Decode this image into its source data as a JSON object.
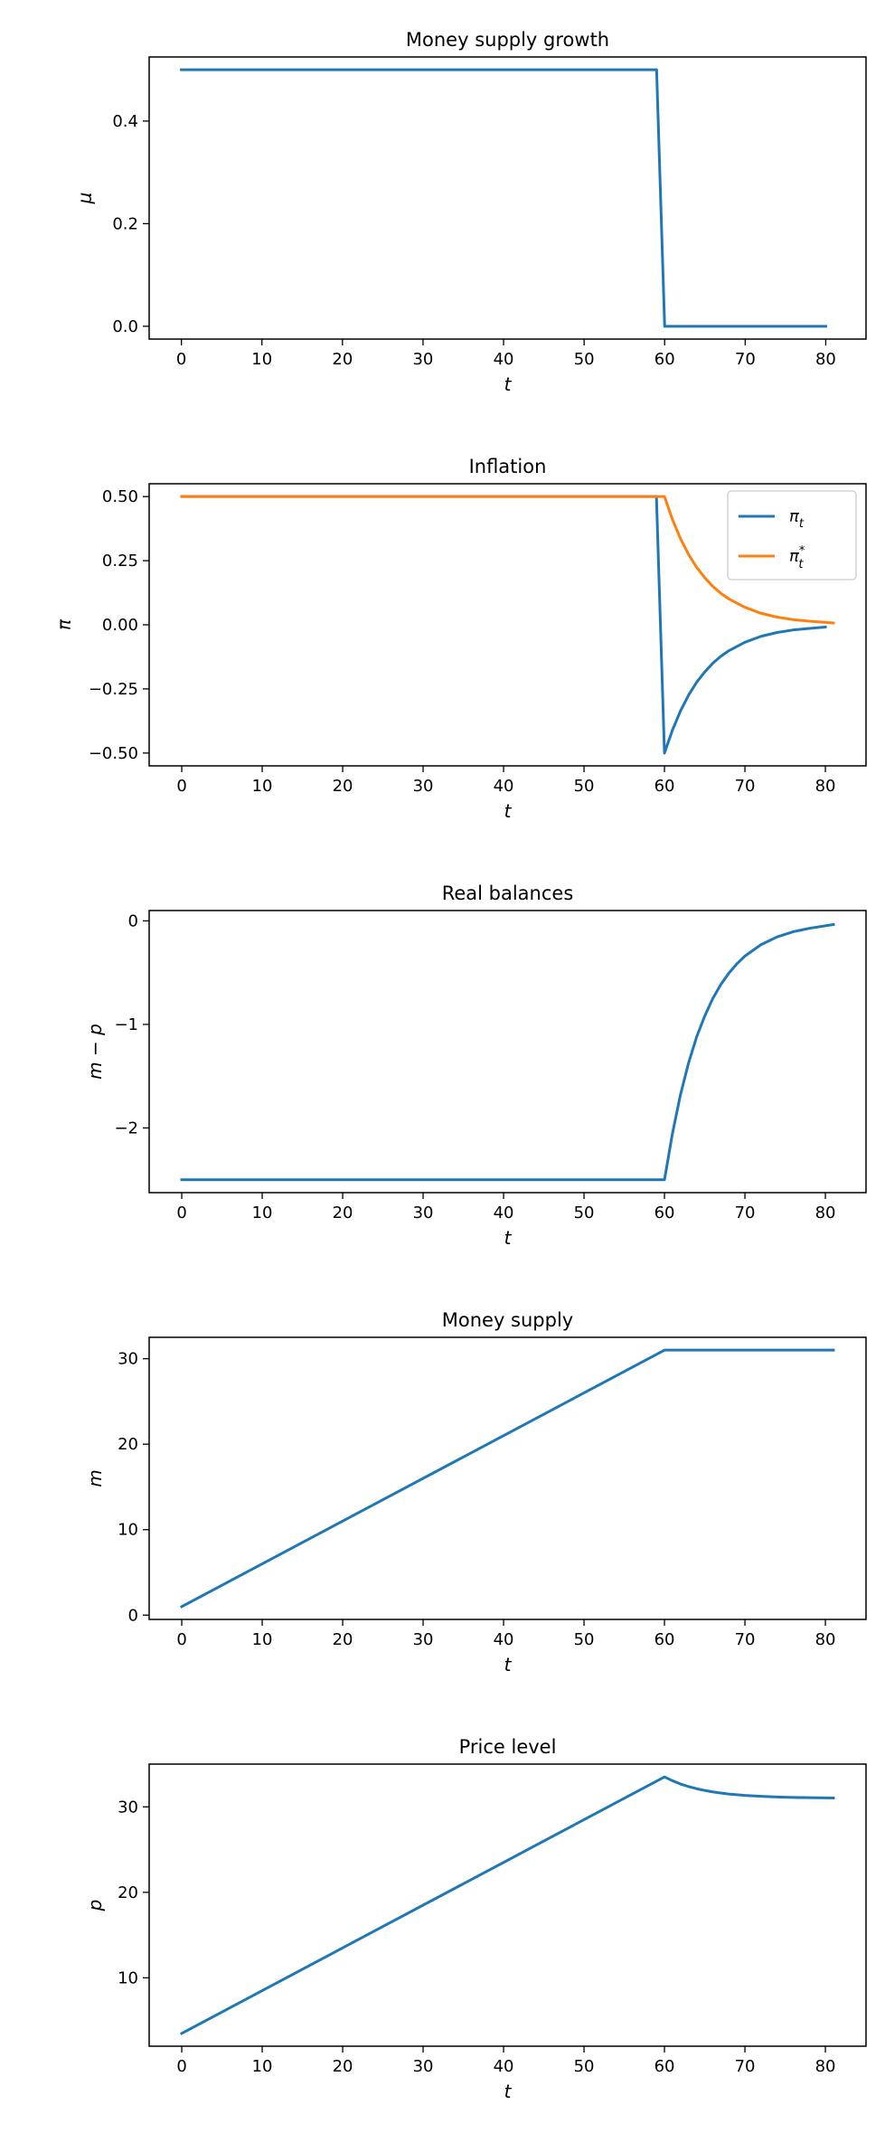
{
  "colors": {
    "blue": "#1f77b4",
    "orange": "#ff7f0e"
  },
  "chart_data": [
    {
      "type": "line",
      "title": "Money supply growth",
      "xlabel": "t",
      "ylabel": "μ",
      "xlim": [
        -4,
        85
      ],
      "ylim": [
        -0.025,
        0.525
      ],
      "xticks": [
        0,
        10,
        20,
        30,
        40,
        50,
        60,
        70,
        80
      ],
      "yticks": [
        0.0,
        0.2,
        0.4
      ],
      "ytick_labels": [
        "0.0",
        "0.2",
        "0.4"
      ],
      "series": [
        {
          "color": "#1f77b4",
          "x": [
            0,
            59,
            60,
            80
          ],
          "y": [
            0.5,
            0.5,
            0.0,
            0.0
          ]
        }
      ]
    },
    {
      "type": "line",
      "title": "Inflation",
      "xlabel": "t",
      "ylabel": "π",
      "xlim": [
        -4.05,
        85.05
      ],
      "ylim": [
        -0.55,
        0.55
      ],
      "xticks": [
        0,
        10,
        20,
        30,
        40,
        50,
        60,
        70,
        80
      ],
      "yticks": [
        -0.5,
        -0.25,
        0.0,
        0.25,
        0.5
      ],
      "ytick_labels": [
        "−0.50",
        "−0.25",
        "0.00",
        "0.25",
        "0.50"
      ],
      "legend": {
        "placement": "upper-right",
        "entries": [
          "π_t",
          "π*_t"
        ]
      },
      "series": [
        {
          "name": "π_t",
          "color": "#1f77b4",
          "x": [
            0,
            59,
            60,
            61,
            62,
            63,
            64,
            65,
            66,
            67,
            68,
            70,
            72,
            74,
            76,
            78,
            80
          ],
          "y": [
            0.5,
            0.5,
            -0.5,
            -0.41,
            -0.335,
            -0.274,
            -0.224,
            -0.184,
            -0.15,
            -0.123,
            -0.101,
            -0.068,
            -0.045,
            -0.03,
            -0.02,
            -0.014,
            -0.009
          ]
        },
        {
          "name": "π*_t",
          "color": "#ff7f0e",
          "x": [
            0,
            60,
            61,
            62,
            63,
            64,
            65,
            66,
            67,
            68,
            70,
            72,
            74,
            76,
            78,
            81
          ],
          "y": [
            0.5,
            0.5,
            0.41,
            0.335,
            0.274,
            0.224,
            0.184,
            0.15,
            0.123,
            0.101,
            0.068,
            0.045,
            0.03,
            0.02,
            0.014,
            0.007
          ]
        }
      ]
    },
    {
      "type": "line",
      "title": "Real balances",
      "xlabel": "t",
      "ylabel": "m − p",
      "xlim": [
        -4.05,
        85.05
      ],
      "ylim": [
        -2.625,
        0.1
      ],
      "xticks": [
        0,
        10,
        20,
        30,
        40,
        50,
        60,
        70,
        80
      ],
      "yticks": [
        -2,
        -1,
        0
      ],
      "ytick_labels": [
        "−2",
        "−1",
        "0"
      ],
      "series": [
        {
          "color": "#1f77b4",
          "x": [
            0,
            60,
            61,
            62,
            63,
            64,
            65,
            66,
            67,
            68,
            69,
            70,
            72,
            74,
            76,
            78,
            81
          ],
          "y": [
            -2.5,
            -2.5,
            -2.05,
            -1.675,
            -1.37,
            -1.12,
            -0.92,
            -0.75,
            -0.615,
            -0.505,
            -0.415,
            -0.34,
            -0.23,
            -0.155,
            -0.105,
            -0.072,
            -0.035
          ]
        }
      ]
    },
    {
      "type": "line",
      "title": "Money supply",
      "xlabel": "t",
      "ylabel": "m",
      "xlim": [
        -4.05,
        85.05
      ],
      "ylim": [
        -0.5,
        32.5
      ],
      "xticks": [
        0,
        10,
        20,
        30,
        40,
        50,
        60,
        70,
        80
      ],
      "yticks": [
        0,
        10,
        20,
        30
      ],
      "ytick_labels": [
        "0",
        "10",
        "20",
        "30"
      ],
      "series": [
        {
          "color": "#1f77b4",
          "x": [
            0,
            60,
            81
          ],
          "y": [
            1,
            31,
            31
          ]
        }
      ]
    },
    {
      "type": "line",
      "title": "Price level",
      "xlabel": "t",
      "ylabel": "p",
      "xlim": [
        -4.05,
        85.05
      ],
      "ylim": [
        2.0,
        35.0
      ],
      "xticks": [
        0,
        10,
        20,
        30,
        40,
        50,
        60,
        70,
        80
      ],
      "yticks": [
        10,
        20,
        30
      ],
      "ytick_labels": [
        "10",
        "20",
        "30"
      ],
      "series": [
        {
          "color": "#1f77b4",
          "x": [
            0,
            60,
            61,
            62,
            63,
            64,
            65,
            66,
            67,
            68,
            70,
            72,
            74,
            76,
            78,
            81
          ],
          "y": [
            3.5,
            33.5,
            33.05,
            32.67,
            32.37,
            32.12,
            31.92,
            31.75,
            31.62,
            31.5,
            31.34,
            31.23,
            31.155,
            31.105,
            31.07,
            31.035
          ]
        }
      ]
    }
  ]
}
